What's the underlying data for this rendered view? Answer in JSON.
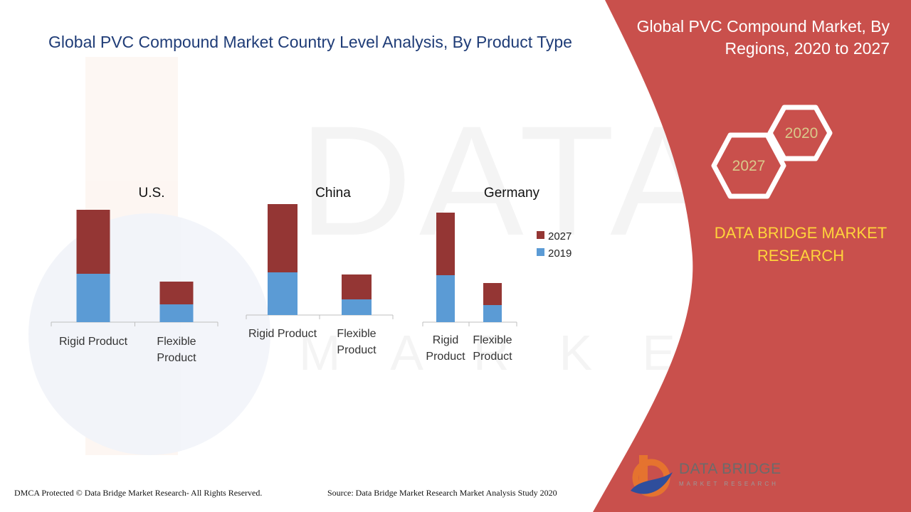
{
  "header": {
    "title": "Global PVC Compound Market Country Level Analysis, By Product Type"
  },
  "side_panel": {
    "title": "Global PVC Compound Market, By Regions, 2020 to 2027",
    "hex_labels": [
      "2020",
      "2027"
    ],
    "brand_text": "DATA BRIDGE MARKET RESEARCH",
    "colors": {
      "panel": "#c9504c",
      "hex_outline": "#ffffff",
      "brand_text": "#ffd43b"
    }
  },
  "footer": {
    "copyright": "DMCA Protected © Data Bridge Market Research- All Rights Reserved.",
    "source": "Source: Data Bridge Market Research Market Analysis Study 2020"
  },
  "logo": {
    "name": "DATA BRIDGE",
    "tagline": "MARKET RESEARCH"
  },
  "chart_data": {
    "type": "bar",
    "stacked": true,
    "colors": {
      "2019": "#5b9bd5",
      "2027": "#943634"
    },
    "legend": {
      "position": "right",
      "entries": [
        "2027",
        "2019"
      ]
    },
    "grid": false,
    "panels": [
      {
        "title": "U.S.",
        "categories": [
          "Rigid Product",
          "Flexible Product"
        ],
        "series": [
          {
            "name": "2019",
            "values": [
              68,
              25
            ]
          },
          {
            "name": "2027",
            "values": [
              90,
              32
            ]
          }
        ]
      },
      {
        "title": "China",
        "categories": [
          "Rigid Product",
          "Flexible Product"
        ],
        "series": [
          {
            "name": "2019",
            "values": [
              60,
              22
            ]
          },
          {
            "name": "2027",
            "values": [
              96,
              35
            ]
          }
        ]
      },
      {
        "title": "Germany",
        "categories": [
          "Rigid Product",
          "Flexible Product"
        ],
        "series": [
          {
            "name": "2019",
            "values": [
              66,
              24
            ]
          },
          {
            "name": "2027",
            "values": [
              88,
              31
            ]
          }
        ]
      }
    ]
  }
}
